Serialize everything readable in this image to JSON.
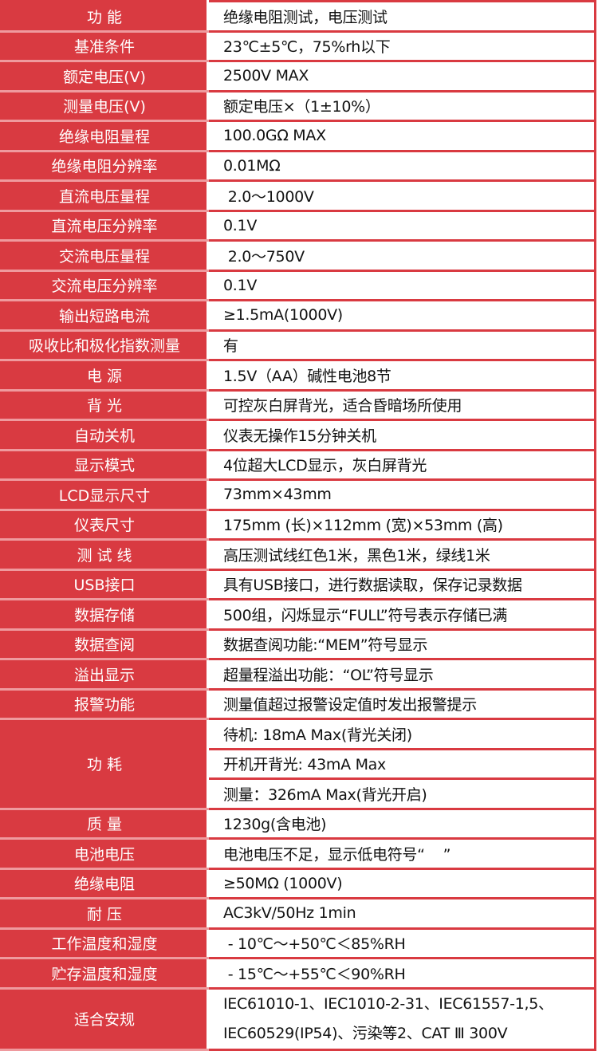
{
  "theme": {
    "header_bg": "#d93a41",
    "value_bg": "#ffffff"
  },
  "rows": [
    {
      "label": "功 能",
      "value": "绝缘电阻测试，电压测试"
    },
    {
      "label": "基准条件",
      "value": "23℃±5℃，75%rh以下"
    },
    {
      "label": "额定电压(V)",
      "value": "2500V MAX"
    },
    {
      "label": "测量电压(V)",
      "value": "额定电压×（1±10%）"
    },
    {
      "label": "绝缘电阻量程",
      "value": "100.0GΩ MAX"
    },
    {
      "label": "绝缘电阻分辨率",
      "value": "0.01MΩ"
    },
    {
      "label": "直流电压量程",
      "value": " 2.0～1000V"
    },
    {
      "label": "直流电压分辨率",
      "value": "0.1V"
    },
    {
      "label": "交流电压量程",
      "value": " 2.0～750V"
    },
    {
      "label": "交流电压分辨率",
      "value": "0.1V"
    },
    {
      "label": "输出短路电流",
      "value": "≥1.5mA(1000V)"
    },
    {
      "label": "吸收比和极化指数测量",
      "value": "有"
    },
    {
      "label": "电 源",
      "value": "1.5V（AA）碱性电池8节"
    },
    {
      "label": "背 光",
      "value": "可控灰白屏背光，适合昏暗场所使用"
    },
    {
      "label": "自动关机",
      "value": "仪表无操作15分钟关机"
    },
    {
      "label": "显示模式",
      "value": "4位超大LCD显示，灰白屏背光"
    },
    {
      "label": "LCD显示尺寸",
      "value": "73mm×43mm"
    },
    {
      "label": "仪表尺寸",
      "value": "175mm (长)×112mm (宽)×53mm (高)"
    },
    {
      "label": "测 试 线",
      "value": "高压测试线红色1米，黑色1米，绿线1米"
    },
    {
      "label": "USB接口",
      "value": "具有USB接口，进行数据读取，保存记录数据"
    },
    {
      "label": "数据存储",
      "value": "500组，闪烁显示“FULL”符号表示存储已满"
    },
    {
      "label": "数据查阅",
      "value": "数据查阅功能:“MEM”符号显示"
    },
    {
      "label": "溢出显示",
      "value": "超量程溢出功能：“OL”符号显示"
    },
    {
      "label": "报警功能",
      "value": "测量值超过报警设定值时发出报警提示"
    }
  ],
  "power": {
    "label": "功 耗",
    "values": [
      "待机: 18mA Max(背光关闭)",
      "开机开背光: 43mA Max",
      "测量：326mA Max(背光开启)"
    ]
  },
  "rows2": [
    {
      "label": "质 量",
      "value": "1230g(含电池)"
    },
    {
      "label": "电池电压",
      "value": "电池电压不足，显示低电符号“    ”"
    },
    {
      "label": "绝缘电阻",
      "value": "≥50MΩ (1000V)"
    },
    {
      "label": "耐 压",
      "value": "AC3kV/50Hz 1min"
    },
    {
      "label": "工作温度和湿度",
      "value": " - 10℃～+50℃＜85%RH"
    },
    {
      "label": "贮存温度和湿度",
      "value": " - 15℃～+55℃＜90%RH"
    }
  ],
  "safety": {
    "label": "适合安规",
    "lines": [
      "IEC61010-1、IEC1010-2-31、IEC61557-1,5、",
      "IEC60529(IP54)、污染等2、CAT Ⅲ 300V"
    ]
  }
}
